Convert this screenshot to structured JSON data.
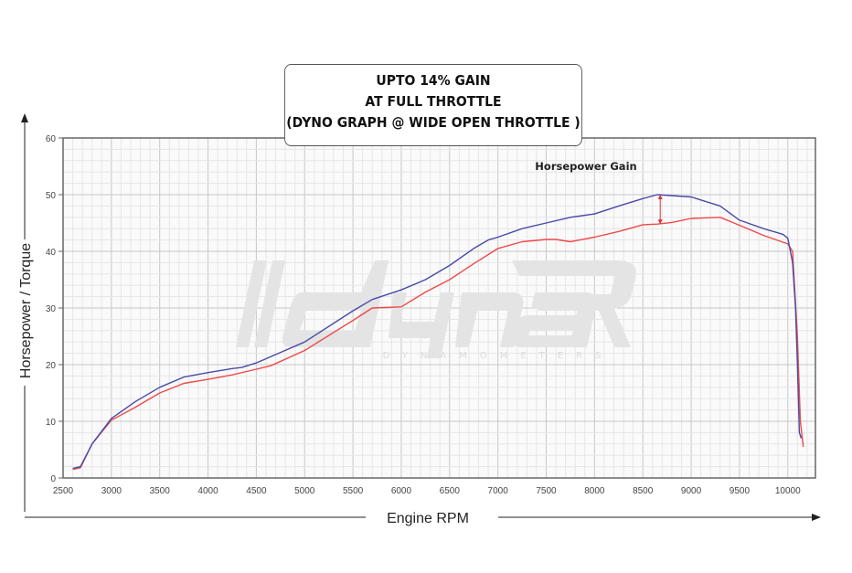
{
  "callout": {
    "lines": [
      "UPTO 14% GAIN",
      "AT FULL THROTTLE",
      "(DYNO GRAPH @ WIDE OPEN THROTTLE )"
    ]
  },
  "watermark": {
    "logo": "dynaRD",
    "sub": "DYNAMOMETERS"
  },
  "chart_data": {
    "type": "line",
    "title": "",
    "xlabel": "Engine RPM",
    "ylabel": "Horsepower / Torque",
    "xlim": [
      2500,
      10300
    ],
    "ylim": [
      0,
      60
    ],
    "xticks": [
      2500,
      3000,
      3500,
      4000,
      4500,
      5000,
      5500,
      6000,
      6500,
      7000,
      7500,
      8000,
      8500,
      9000,
      9500,
      10000
    ],
    "yticks": [
      0,
      10,
      20,
      30,
      40,
      50,
      60
    ],
    "grid": true,
    "annotation": {
      "text": "Horsepower Gain",
      "x": 8680,
      "y_from": 44.8,
      "y_to": 50
    },
    "series": [
      {
        "color": "#4a4aa8",
        "points": [
          [
            2600,
            1.7
          ],
          [
            2680,
            2
          ],
          [
            2800,
            6
          ],
          [
            3000,
            10.5
          ],
          [
            3250,
            13.5
          ],
          [
            3500,
            16
          ],
          [
            3750,
            17.8
          ],
          [
            4000,
            18.6
          ],
          [
            4250,
            19.3
          ],
          [
            4350,
            19.5
          ],
          [
            4500,
            20.3
          ],
          [
            5000,
            24
          ],
          [
            5500,
            29.5
          ],
          [
            5700,
            31.5
          ],
          [
            6000,
            33.2
          ],
          [
            6250,
            35
          ],
          [
            6500,
            37.5
          ],
          [
            6750,
            40.5
          ],
          [
            6900,
            42
          ],
          [
            7000,
            42.5
          ],
          [
            7250,
            44
          ],
          [
            7500,
            45
          ],
          [
            7750,
            46
          ],
          [
            8000,
            46.6
          ],
          [
            8250,
            48
          ],
          [
            8500,
            49.3
          ],
          [
            8650,
            50
          ],
          [
            9000,
            49.6
          ],
          [
            9300,
            48
          ],
          [
            9500,
            45.5
          ],
          [
            9750,
            44
          ],
          [
            9950,
            43
          ],
          [
            10000,
            42.3
          ],
          [
            10050,
            38
          ],
          [
            10080,
            30
          ],
          [
            10100,
            20
          ],
          [
            10120,
            8
          ],
          [
            10140,
            7
          ]
        ]
      },
      {
        "color": "#f04848",
        "points": [
          [
            2600,
            1.5
          ],
          [
            2680,
            1.8
          ],
          [
            2800,
            6
          ],
          [
            3000,
            10.2
          ],
          [
            3250,
            12.5
          ],
          [
            3500,
            15
          ],
          [
            3750,
            16.7
          ],
          [
            4000,
            17.4
          ],
          [
            4250,
            18.2
          ],
          [
            4500,
            19.2
          ],
          [
            4650,
            19.8
          ],
          [
            5000,
            22.5
          ],
          [
            5500,
            27.8
          ],
          [
            5700,
            30
          ],
          [
            6000,
            30.2
          ],
          [
            6250,
            32.8
          ],
          [
            6500,
            35
          ],
          [
            6750,
            37.8
          ],
          [
            7000,
            40.5
          ],
          [
            7250,
            41.7
          ],
          [
            7500,
            42.1
          ],
          [
            7600,
            42.1
          ],
          [
            7750,
            41.7
          ],
          [
            8000,
            42.5
          ],
          [
            8250,
            43.5
          ],
          [
            8500,
            44.7
          ],
          [
            8650,
            44.8
          ],
          [
            8800,
            45.1
          ],
          [
            9000,
            45.8
          ],
          [
            9300,
            46
          ],
          [
            9500,
            44.6
          ],
          [
            9750,
            42.8
          ],
          [
            10000,
            41.3
          ],
          [
            10050,
            40
          ],
          [
            10100,
            25
          ],
          [
            10130,
            10
          ],
          [
            10160,
            5.5
          ]
        ]
      }
    ]
  }
}
